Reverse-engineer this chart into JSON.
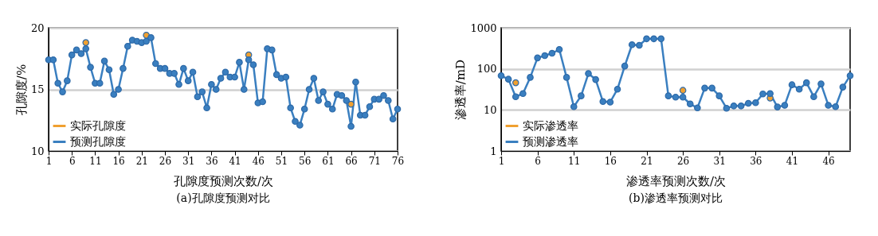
{
  "chart_data": [
    {
      "type": "line",
      "title": "(a)孔隙度预测对比",
      "xlabel": "孔隙度预测次数/次",
      "ylabel": "孔隙度/%",
      "x": [
        1,
        2,
        3,
        4,
        5,
        6,
        7,
        8,
        9,
        10,
        11,
        12,
        13,
        14,
        15,
        16,
        17,
        18,
        19,
        20,
        21,
        22,
        23,
        24,
        25,
        26,
        27,
        28,
        29,
        30,
        31,
        32,
        33,
        34,
        35,
        36,
        37,
        38,
        39,
        40,
        41,
        42,
        43,
        44,
        45,
        46,
        47,
        48,
        49,
        50,
        51,
        52,
        53,
        54,
        55,
        56,
        57,
        58,
        59,
        60,
        61,
        62,
        63,
        64,
        65,
        66,
        67,
        68,
        69,
        70,
        71,
        72,
        73,
        74,
        75,
        76
      ],
      "series": [
        {
          "name": "实际孔隙度",
          "color": "#f0a030",
          "values": [
            null,
            null,
            null,
            null,
            null,
            null,
            null,
            null,
            18.8,
            null,
            null,
            null,
            null,
            null,
            null,
            null,
            null,
            null,
            null,
            null,
            null,
            19.4,
            null,
            null,
            null,
            null,
            null,
            null,
            null,
            null,
            null,
            null,
            null,
            null,
            null,
            null,
            null,
            null,
            null,
            null,
            null,
            null,
            null,
            17.8,
            null,
            null,
            null,
            null,
            null,
            null,
            null,
            null,
            null,
            null,
            null,
            null,
            null,
            null,
            null,
            null,
            null,
            null,
            null,
            null,
            null,
            13.8,
            null,
            null,
            null,
            null,
            null,
            null,
            null,
            null,
            null,
            null
          ]
        },
        {
          "name": "预测孔隙度",
          "color": "#3a7fc0",
          "values": [
            17.4,
            17.4,
            15.5,
            14.8,
            15.7,
            17.8,
            18.2,
            17.9,
            18.3,
            16.8,
            15.5,
            15.5,
            17.3,
            16.6,
            14.6,
            15.0,
            16.7,
            18.5,
            19.0,
            18.9,
            18.8,
            18.9,
            19.2,
            17.1,
            16.7,
            16.7,
            16.3,
            16.3,
            15.4,
            16.7,
            15.7,
            16.4,
            14.4,
            14.8,
            13.5,
            15.4,
            15.0,
            15.9,
            16.4,
            16.0,
            16.0,
            17.2,
            15.0,
            17.4,
            17.0,
            13.9,
            14.0,
            18.3,
            18.2,
            16.2,
            15.9,
            16.0,
            13.5,
            12.4,
            12.1,
            13.4,
            15.0,
            15.9,
            14.1,
            14.8,
            13.8,
            13.4,
            14.6,
            14.5,
            14.1,
            12.0,
            15.6,
            12.9,
            12.9,
            13.6,
            14.2,
            14.2,
            14.5,
            14.1,
            12.6,
            13.4
          ]
        }
      ],
      "xlim": [
        1,
        76
      ],
      "xticks": [
        1,
        6,
        11,
        16,
        21,
        26,
        31,
        36,
        41,
        46,
        51,
        56,
        61,
        66,
        71,
        76
      ],
      "ylim": [
        10,
        20
      ],
      "yticks": [
        10,
        15,
        20
      ],
      "grid": "y",
      "legend": "bottom left",
      "marker": "circle",
      "line_style": "solid"
    },
    {
      "type": "line",
      "title": "(b)渗透率预测对比",
      "xlabel": "渗透率预测次数/次",
      "ylabel": "渗透率/mD",
      "x": [
        1,
        2,
        3,
        4,
        5,
        6,
        7,
        8,
        9,
        10,
        11,
        12,
        13,
        14,
        15,
        16,
        17,
        18,
        19,
        20,
        21,
        22,
        23,
        24,
        25,
        26,
        27,
        28,
        29,
        30,
        31,
        32,
        33,
        34,
        35,
        36,
        37,
        38,
        39,
        40,
        41,
        42,
        43,
        44,
        45,
        46,
        47,
        48,
        49
      ],
      "series": [
        {
          "name": "实际渗透率",
          "color": "#f0a030",
          "values": [
            null,
            null,
            46,
            null,
            null,
            null,
            null,
            null,
            null,
            null,
            null,
            null,
            null,
            null,
            null,
            null,
            null,
            null,
            null,
            null,
            null,
            null,
            null,
            null,
            null,
            30,
            null,
            null,
            null,
            null,
            null,
            null,
            null,
            null,
            null,
            null,
            null,
            19.5,
            null,
            null,
            null,
            null,
            null,
            null,
            null,
            null,
            null,
            null,
            null
          ]
        },
        {
          "name": "预测渗透率",
          "color": "#3a7fc0",
          "values": [
            68,
            56,
            21,
            25,
            62,
            185,
            210,
            240,
            297,
            62,
            12,
            22,
            77,
            55,
            16,
            15.5,
            32,
            117,
            388,
            375,
            540,
            540,
            540,
            22,
            20.5,
            20.5,
            14,
            11.2,
            34,
            34,
            22,
            11,
            12.5,
            12.5,
            14.5,
            15,
            24.5,
            25,
            11.8,
            13,
            41,
            32,
            46,
            21,
            43,
            13,
            12,
            36,
            68
          ]
        }
      ],
      "xlim": [
        1,
        49
      ],
      "xticks": [
        1,
        6,
        11,
        16,
        21,
        26,
        31,
        36,
        41,
        46
      ],
      "ylim": [
        1,
        1000
      ],
      "yticks": [
        1,
        10,
        100,
        1000
      ],
      "log": true,
      "grid": "y",
      "legend": "bottom left",
      "marker": "circle",
      "line_style": "solid"
    }
  ]
}
